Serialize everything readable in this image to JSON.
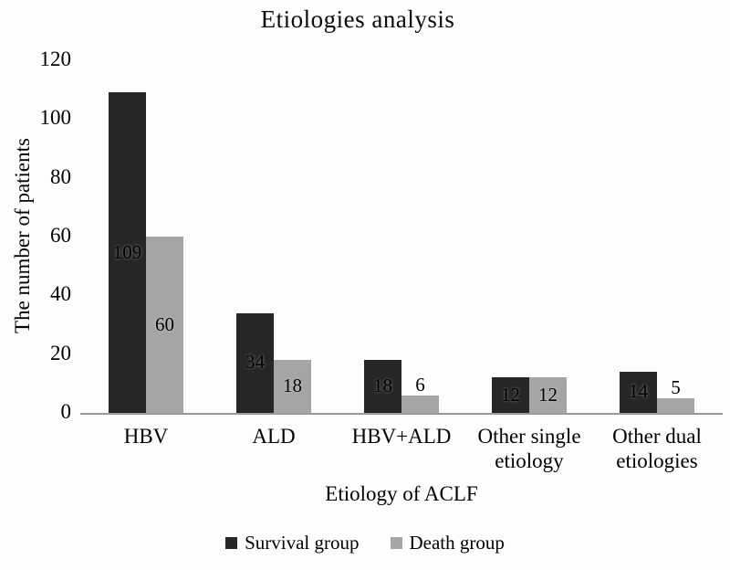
{
  "chart_data": {
    "type": "bar",
    "title": "Etiologies analysis",
    "xlabel": "Etiology of ACLF",
    "ylabel": "The number of patients",
    "ylim": [
      0,
      120
    ],
    "yticks": [
      0,
      20,
      40,
      60,
      80,
      100,
      120
    ],
    "categories": [
      "HBV",
      "ALD",
      "HBV+ALD",
      "Other single\netiology",
      "Other dual\netiologies"
    ],
    "series": [
      {
        "name": "Survival group",
        "color": "#262626",
        "values": [
          109,
          34,
          18,
          12,
          14
        ]
      },
      {
        "name": "Death group",
        "color": "#a5a5a5",
        "values": [
          60,
          18,
          6,
          12,
          5
        ]
      }
    ],
    "data_labels": true,
    "data_label_color": "#000000",
    "axis_line_color": "#999999",
    "grid": false,
    "legend_position": "bottom"
  }
}
